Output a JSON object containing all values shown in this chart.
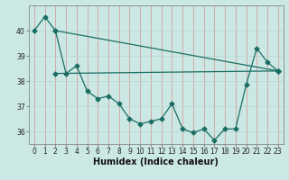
{
  "xlabel": "Humidex (Indice chaleur)",
  "background_color": "#cce8e4",
  "vgrid_color": "#d4a0a0",
  "hgrid_color": "#b8d8d4",
  "line_color": "#1a6e64",
  "xlim": [
    -0.5,
    23.5
  ],
  "ylim": [
    35.5,
    41.0
  ],
  "xticks": [
    0,
    1,
    2,
    3,
    4,
    5,
    6,
    7,
    8,
    9,
    10,
    11,
    12,
    13,
    14,
    15,
    16,
    17,
    18,
    19,
    20,
    21,
    22,
    23
  ],
  "yticks": [
    36,
    37,
    38,
    39,
    40
  ],
  "line1_x": [
    0,
    1,
    2,
    23
  ],
  "line1_y": [
    40.0,
    40.55,
    40.0,
    38.4
  ],
  "line2_x": [
    2,
    3,
    4,
    5,
    6,
    7,
    8,
    9,
    10,
    11,
    12,
    13,
    14,
    15,
    16,
    17,
    18,
    19,
    20,
    21,
    22,
    23
  ],
  "line2_y": [
    40.0,
    38.3,
    38.6,
    37.6,
    37.3,
    37.4,
    37.1,
    36.5,
    36.3,
    36.4,
    36.5,
    37.1,
    36.1,
    35.95,
    36.1,
    35.65,
    36.1,
    36.1,
    37.85,
    39.3,
    38.75,
    38.4
  ],
  "line3_x": [
    2,
    23
  ],
  "line3_y": [
    38.3,
    38.4
  ],
  "marker_size": 2.5,
  "line_width": 0.9,
  "xlabel_fontsize": 7,
  "tick_fontsize": 5.5
}
